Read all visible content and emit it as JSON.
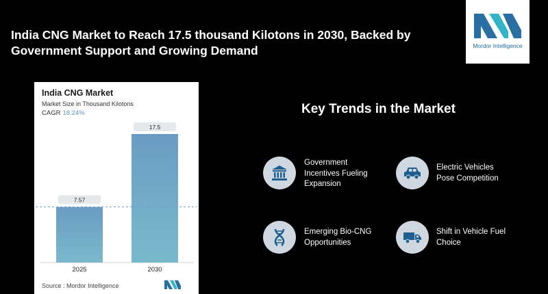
{
  "headline": {
    "line1": "India CNG Market to Reach 17.5 thousand Kilotons in 2030, Backed by",
    "line2": "Government Support and Growing Demand"
  },
  "logo": {
    "text": "Mordor Intelligence"
  },
  "card": {
    "title": "India CNG Market",
    "subtitle": "Market Size in Thousand Kilotons",
    "cagr_label": "CAGR",
    "cagr_value": "18.24%",
    "source": "Source : Mordor Intelligence"
  },
  "chart_data": {
    "type": "bar",
    "categories": [
      "2025",
      "2030"
    ],
    "values": [
      7.57,
      17.5
    ],
    "value_labels": [
      "7.57",
      "17.5"
    ],
    "title": "India CNG Market",
    "ylabel": "Market Size in Thousand Kilotons",
    "ylim": [
      0,
      20
    ],
    "bar_color": "#6e9dbf",
    "reference_line": "dashed at 2025 value",
    "grid": false,
    "legend": "none"
  },
  "trends": {
    "title": "Key Trends in the Market",
    "items": [
      {
        "icon": "government-building-icon",
        "label_lines": [
          "Government",
          "Incentives Fueling",
          "Expansion"
        ]
      },
      {
        "icon": "car-icon",
        "label_lines": [
          "Electric Vehicles",
          "Pose Competition"
        ]
      },
      {
        "icon": "dna-icon",
        "label_lines": [
          "Emerging Bio-CNG",
          "Opportunities"
        ]
      },
      {
        "icon": "truck-icon",
        "label_lines": [
          "Shift in Vehicle Fuel",
          "Choice"
        ]
      }
    ]
  },
  "colors": {
    "accent": "#5b9bc1",
    "icon_circle": "#cfd8e0",
    "icon_fg": "#1f5f8f"
  }
}
